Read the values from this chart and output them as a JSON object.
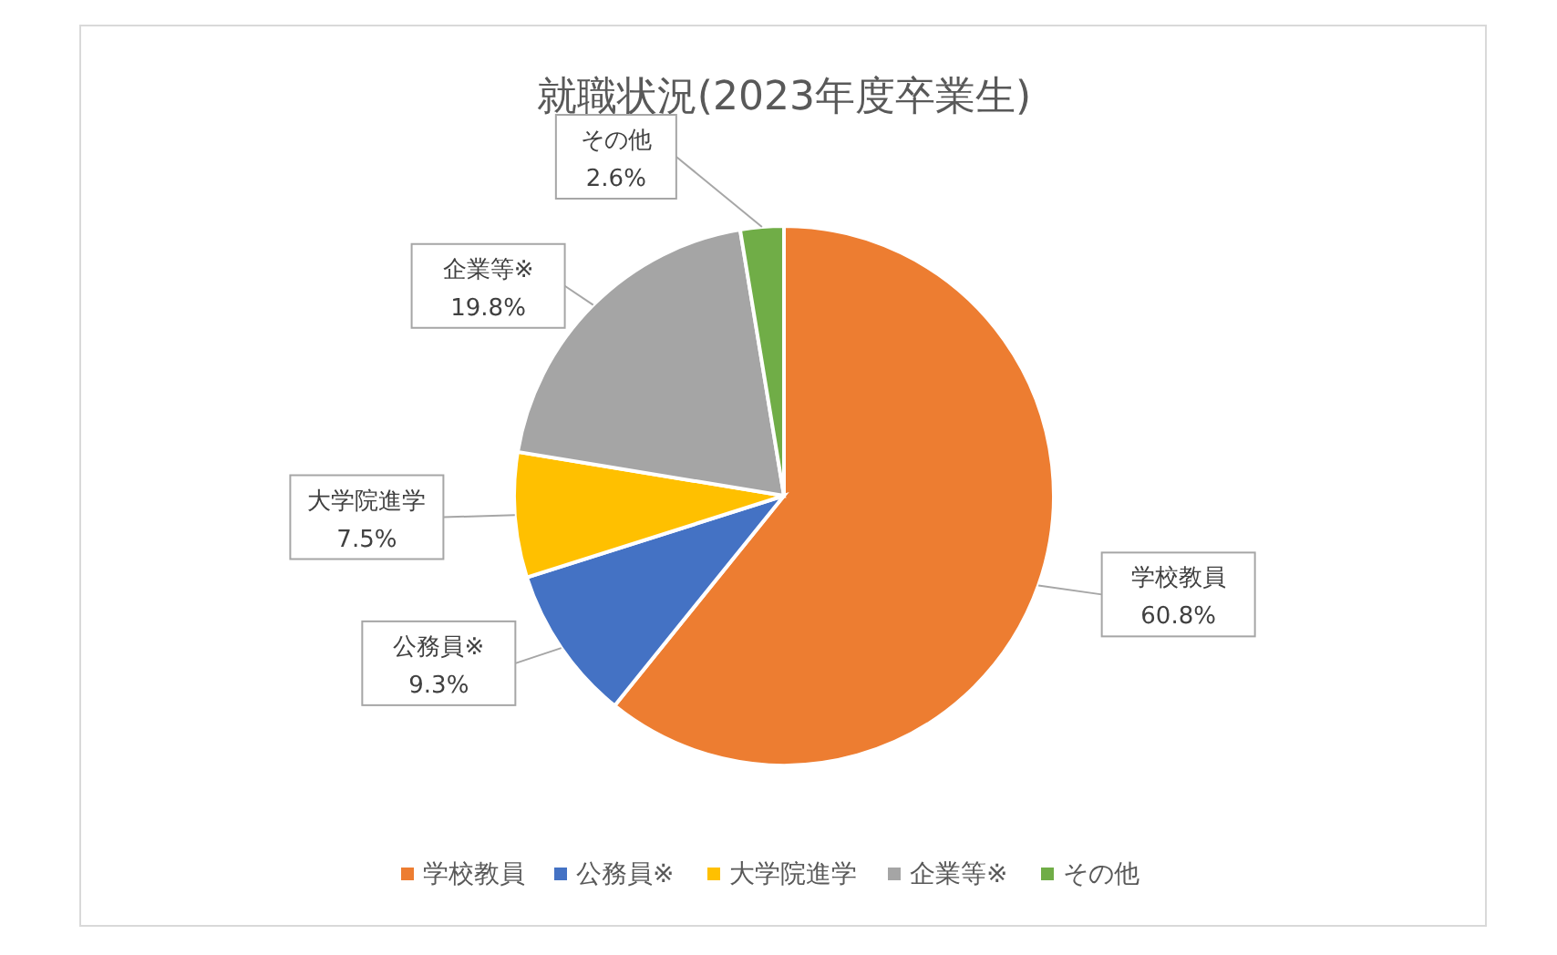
{
  "chart_data": {
    "type": "pie",
    "title": "就職状況(2023年度卒業生)",
    "categories": [
      "学校教員",
      "公務員※",
      "大学院進学",
      "企業等※",
      "その他"
    ],
    "values": [
      60.8,
      9.3,
      7.5,
      19.8,
      2.6
    ],
    "colors": [
      "#ed7d31",
      "#4472c4",
      "#ffc000",
      "#a5a5a5",
      "#70ad47"
    ],
    "value_labels": [
      "60.8%",
      "9.3%",
      "7.5%",
      "19.8%",
      "2.6%"
    ],
    "legend": "bottom"
  }
}
